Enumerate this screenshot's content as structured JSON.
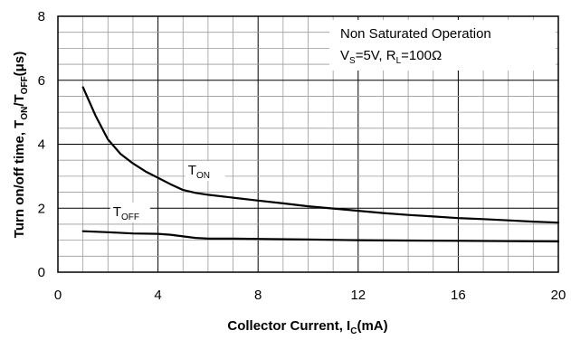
{
  "chart_data": {
    "type": "line",
    "xlabel": {
      "main": "Collector Current, I",
      "sub": "C",
      "tail": "(mA)"
    },
    "ylabel": {
      "main": "Turn on/off time, T",
      "sub1": "ON",
      "mid": "/T",
      "sub2": "OFF",
      "tail": "(μs)"
    },
    "xlim": [
      0,
      20
    ],
    "ylim": [
      0,
      8
    ],
    "x_ticks": [
      "0",
      "4",
      "8",
      "12",
      "16",
      "20"
    ],
    "y_ticks": [
      "0",
      "2",
      "4",
      "6",
      "8"
    ],
    "grid": true,
    "annotation": {
      "line1": "Non Saturated Operation",
      "line2_a": "V",
      "line2_a_sub": "S",
      "line2_b": "=5V, R",
      "line2_b_sub": "L",
      "line2_c": "=100Ω"
    },
    "series": [
      {
        "name": "T",
        "name_sub": "ON",
        "label_at": [
          5.2,
          3.05
        ],
        "x": [
          1,
          1.5,
          2,
          2.5,
          3,
          3.5,
          4,
          4.5,
          5,
          5.5,
          6,
          7,
          8,
          9,
          10,
          11,
          12,
          13,
          14,
          15,
          16,
          17,
          18,
          19,
          20
        ],
        "y": [
          5.78,
          4.9,
          4.15,
          3.7,
          3.4,
          3.15,
          2.95,
          2.75,
          2.57,
          2.48,
          2.42,
          2.33,
          2.24,
          2.15,
          2.06,
          1.99,
          1.92,
          1.85,
          1.79,
          1.74,
          1.69,
          1.66,
          1.62,
          1.58,
          1.55
        ]
      },
      {
        "name": "T",
        "name_sub": "OFF",
        "label_at": [
          2.2,
          1.75
        ],
        "x": [
          1,
          2,
          3,
          4,
          4.5,
          5,
          5.5,
          6,
          7,
          8,
          10,
          12,
          14,
          16,
          18,
          20
        ],
        "y": [
          1.28,
          1.25,
          1.21,
          1.2,
          1.17,
          1.12,
          1.07,
          1.05,
          1.05,
          1.04,
          1.02,
          1.0,
          0.99,
          0.98,
          0.97,
          0.96
        ]
      }
    ]
  }
}
